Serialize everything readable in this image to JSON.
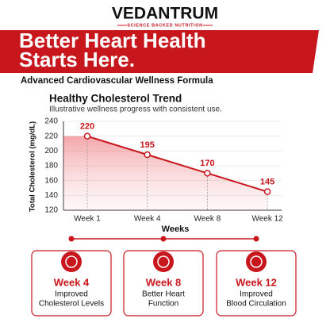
{
  "brand": {
    "name": "VEDANTRUM",
    "tagline": "SCIENCE BACKED NUTRITION"
  },
  "headline": [
    "Better Heart Health",
    "Starts Here."
  ],
  "subheading": "Advanced Cardiovascular Wellness Formula",
  "chart_data": {
    "type": "line",
    "title": "Healthy Cholesterol Trend",
    "subtitle": "Illustrative wellness progress with consistent use.",
    "y_label": "Total Cholesterol (mg/dL)",
    "x_label": "Weeks",
    "categories": [
      "Week 1",
      "Week 4",
      "Week 8",
      "Week 12"
    ],
    "values": [
      220,
      195,
      170,
      145
    ],
    "color": "#c8161d",
    "ylim": [
      120,
      240
    ],
    "yticks": [
      120,
      140,
      160,
      180,
      200,
      220,
      240
    ],
    "grid": true
  },
  "milestones": [
    {
      "week": "Week 4",
      "line1": "Improved",
      "line2": "Cholesterol Levels"
    },
    {
      "week": "Week 8",
      "line1": "Better Heart",
      "line2": "Function"
    },
    {
      "week": "Week 12",
      "line1": "Improved",
      "line2": "Blood Circulation"
    }
  ]
}
